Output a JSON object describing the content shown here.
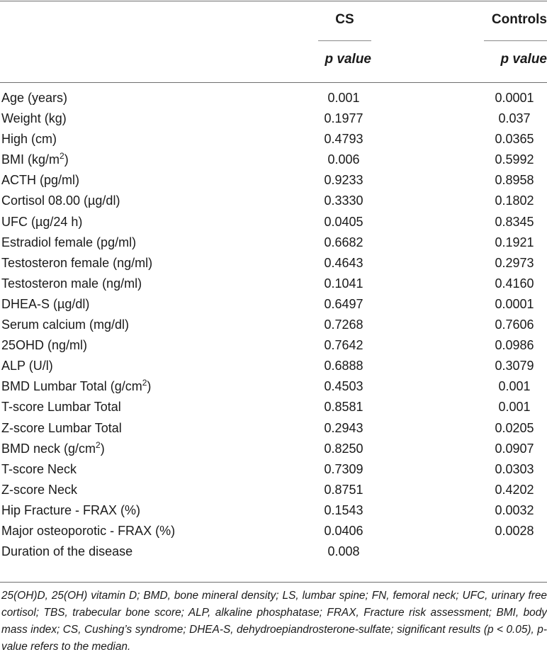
{
  "header": {
    "col1": "CS",
    "col2": "Controls",
    "sub1": "p value",
    "sub2": "p value"
  },
  "rows": [
    {
      "label": "Age (years)",
      "cs": "0.001",
      "controls": "0.0001"
    },
    {
      "label": "Weight (kg)",
      "cs": "0.1977",
      "controls": "0.037"
    },
    {
      "label": "High (cm)",
      "cs": "0.4793",
      "controls": "0.0365"
    },
    {
      "label": "BMI (kg/m",
      "sup": "2",
      "label_after": ")",
      "cs": "0.006",
      "controls": "0.5992"
    },
    {
      "label": "ACTH (pg/ml)",
      "cs": "0.9233",
      "controls": "0.8958"
    },
    {
      "label": "Cortisol 08.00 (µg/dl)",
      "cs": "0.3330",
      "controls": "0.1802"
    },
    {
      "label": "UFC (µg/24 h)",
      "cs": "0.0405",
      "controls": "0.8345"
    },
    {
      "label": "Estradiol female (pg/ml)",
      "cs": "0.6682",
      "controls": "0.1921"
    },
    {
      "label": "Testosteron female (ng/ml)",
      "cs": "0.4643",
      "controls": "0.2973"
    },
    {
      "label": "Testosteron male (ng/ml)",
      "cs": "0.1041",
      "controls": "0.4160"
    },
    {
      "label": "DHEA-S (µg/dl)",
      "cs": "0.6497",
      "controls": "0.0001"
    },
    {
      "label": "Serum calcium (mg/dl)",
      "cs": "0.7268",
      "controls": "0.7606"
    },
    {
      "label": "25OHD (ng/ml)",
      "cs": "0.7642",
      "controls": "0.0986"
    },
    {
      "label": "ALP (U/l)",
      "cs": "0.6888",
      "controls": "0.3079"
    },
    {
      "label": "BMD Lumbar Total (g/cm",
      "sup": "2",
      "label_after": ")",
      "cs": "0.4503",
      "controls": "0.001"
    },
    {
      "label": "T-score Lumbar Total",
      "cs": "0.8581",
      "controls": "0.001"
    },
    {
      "label": "Z-score Lumbar Total",
      "cs": "0.2943",
      "controls": "0.0205"
    },
    {
      "label": "BMD neck (g/cm",
      "sup": "2",
      "label_after": ")",
      "cs": "0.8250",
      "controls": "0.0907"
    },
    {
      "label": "T-score Neck",
      "cs": "0.7309",
      "controls": "0.0303"
    },
    {
      "label": "Z-score Neck",
      "cs": "0.8751",
      "controls": "0.4202"
    },
    {
      "label": "Hip Fracture - FRAX (%)",
      "cs": "0.1543",
      "controls": "0.0032"
    },
    {
      "label": "Major osteoporotic - FRAX (%)",
      "cs": "0.0406",
      "controls": "0.0028"
    },
    {
      "label": "Duration of the disease",
      "cs": "0.008",
      "controls": ""
    }
  ],
  "footnote": "25(OH)D, 25(OH) vitamin D; BMD, bone mineral density; LS, lumbar spine; FN, femoral neck; UFC, urinary free cortisol; TBS, trabecular bone score; ALP, alkaline phosphatase; FRAX, Fracture risk assessment; BMI, body mass index; CS, Cushing’s syndrome; DHEA-S, dehydroepiandrosterone-sulfate; significant results (p < 0.05), p-value refers to the median."
}
